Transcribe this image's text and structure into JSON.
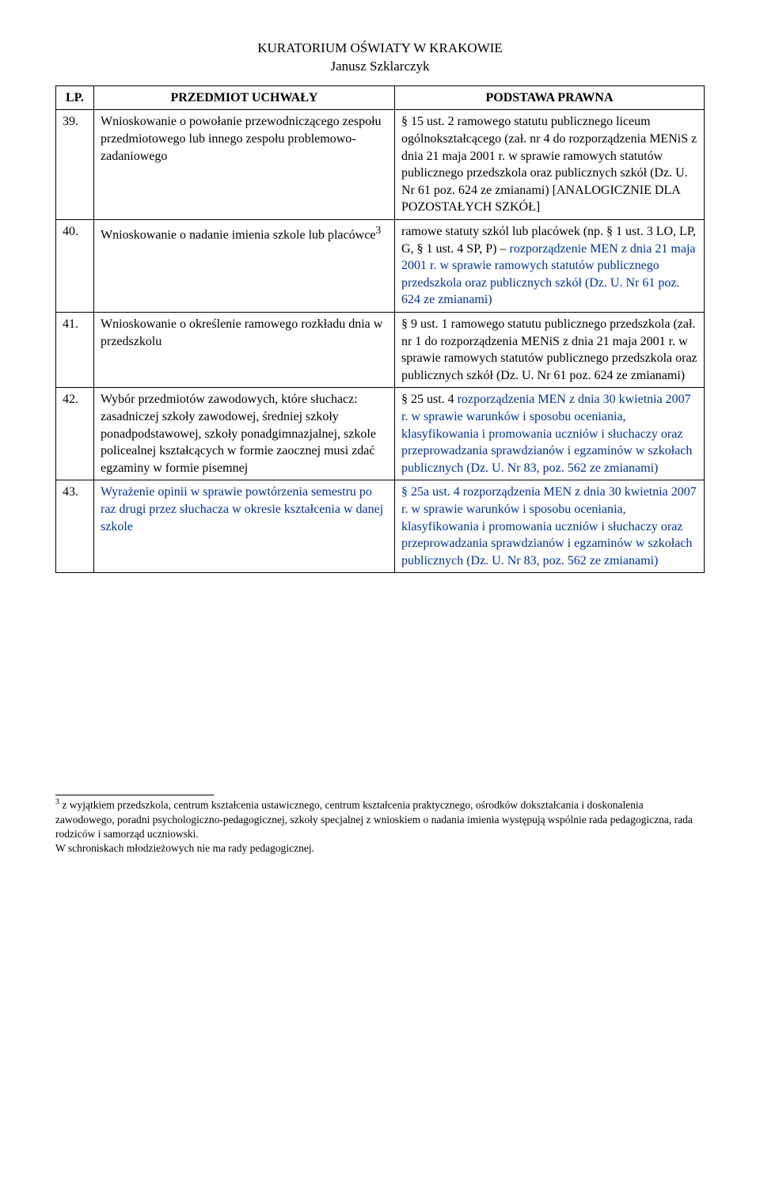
{
  "header": {
    "line1": "KURATORIUM OŚWIATY W KRAKOWIE",
    "line2": "Janusz Szklarczyk"
  },
  "columns": {
    "lp": "LP.",
    "subject": "PRZEDMIOT UCHWAŁY",
    "basis": "PODSTAWA PRAWNA"
  },
  "rows": [
    {
      "lp": "39.",
      "subject": "Wnioskowanie o powołanie przewodniczącego zespołu przedmiotowego lub innego zespołu problemowo-zadaniowego",
      "basis_plain": "§ 15 ust. 2 ramowego statutu publicznego liceum ogólnokształcącego (zał. nr 4 do rozporządzenia MENiS z dnia 21 maja 2001 r. w sprawie ramowych statutów publicznego przedszkola oraz publicznych szkół (Dz. U. Nr 61 poz. 624 ze zmianami) [ANALOGICZNIE DLA POZOSTAŁYCH SZKÓŁ]",
      "basis_blue": ""
    },
    {
      "lp": "40.",
      "subject_pre": "Wnioskowanie o nadanie imienia szkole lub placówce",
      "subject_sup": "3",
      "basis_plain": "ramowe statuty szkól lub placówek (np. § 1 ust. 3 LO, LP, G, § 1 ust. 4 SP, P) – ",
      "basis_blue": "rozporządzenie MEN z dnia 21 maja 2001 r. w sprawie ramowych statutów publicznego przedszkola oraz publicznych szkół (Dz. U. Nr 61 poz. 624 ze zmianami)"
    },
    {
      "lp": "41.",
      "subject": "Wnioskowanie o określenie ramowego rozkładu dnia w przedszkolu",
      "basis_plain": "§ 9 ust. 1 ramowego statutu publicznego przedszkola (zał. nr 1 do rozporządzenia MENiS z dnia 21 maja 2001 r. w sprawie ramowych statutów publicznego przedszkola oraz publicznych szkół (Dz. U. Nr 61 poz. 624 ze zmianami)",
      "basis_blue": ""
    },
    {
      "lp": "42.",
      "subject": "Wybór przedmiotów zawodowych, które słuchacz: zasadniczej szkoły zawodowej, średniej szkoły ponadpodstawowej, szkoły ponadgimnazjalnej, szkole policealnej kształcących w formie zaocznej musi zdać egzaminy w formie pisemnej",
      "basis_pre": "§ 25 ust. 4 ",
      "basis_blue": "rozporządzenia MEN z dnia 30 kwietnia 2007 r. w sprawie warunków i sposobu oceniania, klasyfikowania i promowania uczniów i słuchaczy oraz przeprowadzania sprawdzianów i egzaminów w szkołach publicznych (Dz. U. Nr 83, poz. 562 ze zmianami)"
    },
    {
      "lp": "43.",
      "subject_blue": "Wyrażenie opinii w sprawie powtórzenia semestru po raz drugi przez słuchacza w okresie kształcenia w danej szkole",
      "basis_pre": "",
      "basis_blue": "§ 25a ust. 4 rozporządzenia MEN z dnia 30 kwietnia 2007 r. w sprawie warunków i sposobu oceniania, klasyfikowania i promowania uczniów i słuchaczy oraz przeprowadzania sprawdzianów i egzaminów w szkołach publicznych (Dz. U. Nr 83, poz. 562 ze zmianami)"
    }
  ],
  "footnote": {
    "marker": "3",
    "text": " z wyjątkiem przedszkola, centrum kształcenia ustawicznego, centrum kształcenia praktycznego, ośrodków dokształcania i doskonalenia zawodowego, poradni psychologiczno-pedagogicznej, szkoły specjalnej z wnioskiem o nadania imienia występują wspólnie rada pedagogiczna, rada rodziców i samorząd uczniowski.",
    "text2": "W schroniskach młodzieżowych nie ma rady pedagogicznej."
  }
}
